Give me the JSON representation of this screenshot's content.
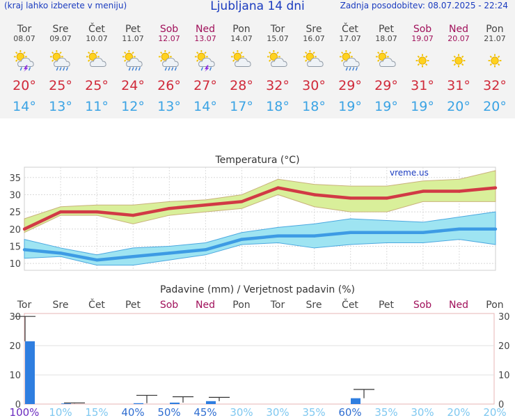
{
  "header": {
    "left": "(kraj lahko izberete v meniju)",
    "title": "Ljubljana 14 dni",
    "right": "Zadnja posodobitev: 08.07.2025 - 22:24"
  },
  "days": [
    {
      "name": "Tor",
      "date": "08.07",
      "weekend": false,
      "icon": "sun-cloud-thunder-icon",
      "tmax": "20°",
      "tmin": "14°"
    },
    {
      "name": "Sre",
      "date": "09.07",
      "weekend": false,
      "icon": "sun-cloud-rain-icon",
      "tmax": "25°",
      "tmin": "13°"
    },
    {
      "name": "Čet",
      "date": "10.07",
      "weekend": false,
      "icon": "sun-cloud-icon",
      "tmax": "25°",
      "tmin": "11°"
    },
    {
      "name": "Pet",
      "date": "11.07",
      "weekend": false,
      "icon": "sun-cloud-rain-icon",
      "tmax": "24°",
      "tmin": "12°"
    },
    {
      "name": "Sob",
      "date": "12.07",
      "weekend": true,
      "icon": "sun-cloud-rain-icon",
      "tmax": "26°",
      "tmin": "13°"
    },
    {
      "name": "Ned",
      "date": "13.07",
      "weekend": true,
      "icon": "sun-cloud-thunder-icon",
      "tmax": "27°",
      "tmin": "14°"
    },
    {
      "name": "Pon",
      "date": "14.07",
      "weekend": false,
      "icon": "sun-cloud-icon",
      "tmax": "28°",
      "tmin": "17°"
    },
    {
      "name": "Tor",
      "date": "15.07",
      "weekend": false,
      "icon": "sun-cloud-icon",
      "tmax": "32°",
      "tmin": "18°"
    },
    {
      "name": "Sre",
      "date": "16.07",
      "weekend": false,
      "icon": "sun-cloud-icon",
      "tmax": "30°",
      "tmin": "18°"
    },
    {
      "name": "Čet",
      "date": "17.07",
      "weekend": false,
      "icon": "sun-cloud-rain-icon",
      "tmax": "29°",
      "tmin": "19°"
    },
    {
      "name": "Pet",
      "date": "18.07",
      "weekend": false,
      "icon": "sun-cloud-icon",
      "tmax": "29°",
      "tmin": "19°"
    },
    {
      "name": "Sob",
      "date": "19.07",
      "weekend": true,
      "icon": "sun-icon",
      "tmax": "31°",
      "tmin": "19°"
    },
    {
      "name": "Ned",
      "date": "20.07",
      "weekend": true,
      "icon": "sun-icon",
      "tmax": "31°",
      "tmin": "20°"
    },
    {
      "name": "Pon",
      "date": "21.07",
      "weekend": false,
      "icon": "sun-icon",
      "tmax": "32°",
      "tmin": "20°"
    }
  ],
  "colors": {
    "max_line": "#d13a45",
    "max_band": "#d9ef9a",
    "min_line": "#3d9be4",
    "min_band": "#9ee4f2",
    "bar": "#2f7ee0",
    "weekend": "#a0105a",
    "prob_high": "#6a2bbf",
    "prob_mid": "#2f6ed1",
    "prob_low": "#7fc8f0"
  },
  "chart_data": [
    {
      "type": "line",
      "title": "Temperatura (°C)",
      "watermark": "vreme.us",
      "ylim": [
        8,
        38
      ],
      "yticks": [
        10,
        15,
        20,
        25,
        30,
        35
      ],
      "grid": true,
      "series": [
        {
          "values": [
            20,
            25,
            25,
            24,
            26,
            27,
            28,
            32,
            30,
            29,
            29,
            31,
            31,
            32
          ],
          "band_low": [
            19,
            24,
            24,
            21.5,
            24,
            25,
            26,
            30,
            26.5,
            25,
            25,
            28,
            28,
            28
          ],
          "band_high": [
            23,
            26.5,
            27,
            27,
            28,
            28.5,
            30,
            34.5,
            33,
            32.5,
            32.5,
            34,
            34.5,
            37
          ]
        },
        {
          "values": [
            14,
            13,
            11,
            12,
            13,
            14,
            17,
            18,
            18,
            19,
            19,
            19,
            20,
            20
          ],
          "band_low": [
            11.5,
            12,
            9.5,
            9.5,
            11,
            12.5,
            15.5,
            16,
            14.5,
            15.5,
            16,
            16,
            17,
            15.5
          ],
          "band_high": [
            17,
            14.5,
            12.5,
            14.5,
            15,
            16,
            19,
            20.5,
            21.5,
            23,
            22.5,
            22,
            23.5,
            25
          ]
        }
      ]
    },
    {
      "type": "bar",
      "title": "Padavine (mm) / Verjetnost padavin (%)",
      "categories": [
        "Tor",
        "Sre",
        "Čet",
        "Pet",
        "Sob",
        "Ned",
        "Pon",
        "Tor",
        "Sre",
        "Čet",
        "Pet",
        "Sob",
        "Ned",
        "Pon"
      ],
      "weekend": [
        false,
        false,
        false,
        false,
        true,
        true,
        false,
        false,
        false,
        false,
        false,
        true,
        true,
        false
      ],
      "values": [
        21.5,
        0.2,
        0,
        0.3,
        0.5,
        1,
        0,
        0,
        0,
        2,
        0,
        0,
        0,
        0
      ],
      "error_high": [
        30,
        0.4,
        0,
        3,
        2.5,
        2.3,
        0,
        0,
        0,
        5,
        0,
        0,
        0,
        0
      ],
      "probability": [
        "100%",
        "10%",
        "15%",
        "40%",
        "50%",
        "45%",
        "30%",
        "30%",
        "35%",
        "60%",
        "35%",
        "30%",
        "20%",
        "20%"
      ],
      "ylim": [
        0,
        31
      ],
      "yticks": [
        0,
        10,
        20,
        30
      ]
    }
  ]
}
